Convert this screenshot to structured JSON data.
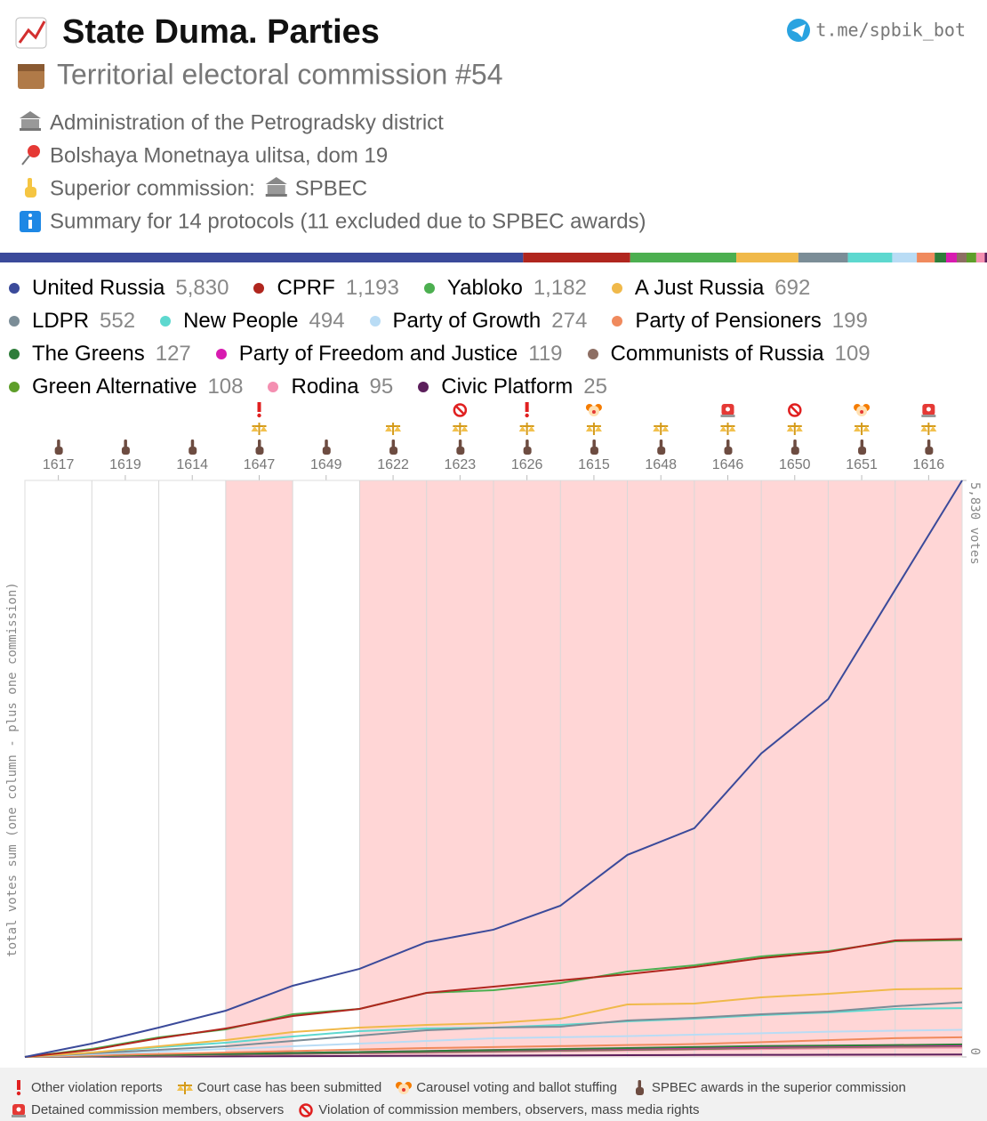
{
  "header": {
    "title": "State Duma. Parties",
    "subtitle": "Territorial electoral commission #54",
    "link": "t.me/spbik_bot",
    "administration": "Administration of the Petrogradsky district",
    "address": "Bolshaya Monetnaya ulitsa, dom 19",
    "superior_label": "Superior commission:",
    "superior_value": "SPBEC",
    "summary": "Summary for 14 protocols (11 excluded due to SPBEC awards)"
  },
  "chart_data": {
    "type": "line",
    "ylabel": "total votes sum (one column - plus one commission)",
    "categories": [
      "1617",
      "1619",
      "1614",
      "1647",
      "1649",
      "1622",
      "1623",
      "1626",
      "1615",
      "1648",
      "1646",
      "1650",
      "1651",
      "1616"
    ],
    "flags": [
      [
        3
      ],
      [
        3
      ],
      [
        3
      ],
      [
        0,
        1,
        3
      ],
      [
        3
      ],
      [
        1,
        3
      ],
      [
        5,
        1,
        3
      ],
      [
        0,
        1,
        3
      ],
      [
        2,
        1,
        3
      ],
      [
        1,
        3
      ],
      [
        4,
        1,
        3
      ],
      [
        5,
        1,
        3
      ],
      [
        2,
        1,
        3
      ],
      [
        4,
        1,
        3
      ]
    ],
    "flag_legend": [
      "Other violation reports",
      "Court case has been submitted",
      "Carousel voting and ballot stuffing",
      "SPBEC awards in the superior commission",
      "Detained commission members, observers",
      "Violation of commission members, observers, mass media rights"
    ],
    "ylim": [
      0,
      5830
    ],
    "yticks": [
      0,
      {
        "value": 5830,
        "label": "5,830 votes"
      }
    ],
    "grid": true,
    "series": [
      {
        "name": "United Russia",
        "color": "#3b4a9a",
        "total": 5830,
        "total_label": "5,830",
        "values": [
          135,
          297,
          468,
          720,
          891,
          1161,
          1287,
          1530,
          2043,
          2313,
          3069,
          3618,
          4725,
          5830
        ]
      },
      {
        "name": "CPRF",
        "color": "#b0261e",
        "total": 1193,
        "total_label": "1,193",
        "values": [
          72,
          189,
          288,
          414,
          486,
          648,
          711,
          774,
          837,
          909,
          999,
          1062,
          1179,
          1193
        ]
      },
      {
        "name": "Yabloko",
        "color": "#4caf50",
        "total": 1182,
        "total_label": "1,182",
        "values": [
          81,
          198,
          279,
          432,
          486,
          648,
          675,
          747,
          864,
          927,
          1017,
          1071,
          1170,
          1182
        ]
      },
      {
        "name": "A Just Russia",
        "color": "#f0b94a",
        "total": 692,
        "values": [
          45,
          108,
          171,
          252,
          297,
          324,
          342,
          387,
          531,
          540,
          603,
          639,
          684,
          692
        ]
      },
      {
        "name": "LDPR",
        "color": "#7b8d97",
        "total": 552,
        "values": [
          36,
          72,
          108,
          162,
          216,
          270,
          297,
          306,
          369,
          396,
          432,
          459,
          513,
          552
        ]
      },
      {
        "name": "New People",
        "color": "#5dd8cf",
        "total": 494,
        "values": [
          45,
          99,
          144,
          207,
          261,
          288,
          297,
          324,
          360,
          387,
          423,
          450,
          486,
          494
        ]
      },
      {
        "name": "Party of Growth",
        "color": "#b9dcf5",
        "total": 274,
        "values": [
          27,
          54,
          81,
          108,
          135,
          162,
          189,
          200,
          210,
          225,
          240,
          255,
          265,
          274
        ]
      },
      {
        "name": "Party of Pensioners",
        "color": "#f08a5d",
        "total": 199,
        "values": [
          15,
          30,
          45,
          60,
          75,
          90,
          100,
          110,
          120,
          130,
          150,
          170,
          190,
          199
        ]
      },
      {
        "name": "The Greens",
        "color": "#2e7d3a",
        "total": 127,
        "values": [
          10,
          20,
          30,
          40,
          50,
          60,
          70,
          80,
          90,
          100,
          110,
          115,
          120,
          127
        ]
      },
      {
        "name": "Party of Freedom and Justice",
        "color": "#d81bb0",
        "total": 119,
        "values": [
          10,
          20,
          30,
          40,
          50,
          60,
          70,
          78,
          86,
          94,
          102,
          110,
          115,
          119
        ]
      },
      {
        "name": "Communists of Russia",
        "color": "#8d6e63",
        "total": 109,
        "values": [
          8,
          16,
          24,
          32,
          40,
          48,
          56,
          64,
          72,
          80,
          90,
          100,
          105,
          109
        ]
      },
      {
        "name": "Green Alternative",
        "color": "#5e9e2a",
        "total": 108,
        "values": [
          8,
          16,
          24,
          32,
          40,
          48,
          56,
          64,
          72,
          80,
          90,
          98,
          104,
          108
        ]
      },
      {
        "name": "Rodina",
        "color": "#f48fb1",
        "total": 95,
        "values": [
          7,
          14,
          21,
          28,
          35,
          42,
          50,
          58,
          66,
          74,
          80,
          86,
          92,
          95
        ]
      },
      {
        "name": "Civic Platform",
        "color": "#5c1f5c",
        "total": 25,
        "values": [
          2,
          4,
          6,
          8,
          10,
          12,
          14,
          16,
          18,
          20,
          21,
          22,
          24,
          25
        ]
      }
    ]
  }
}
